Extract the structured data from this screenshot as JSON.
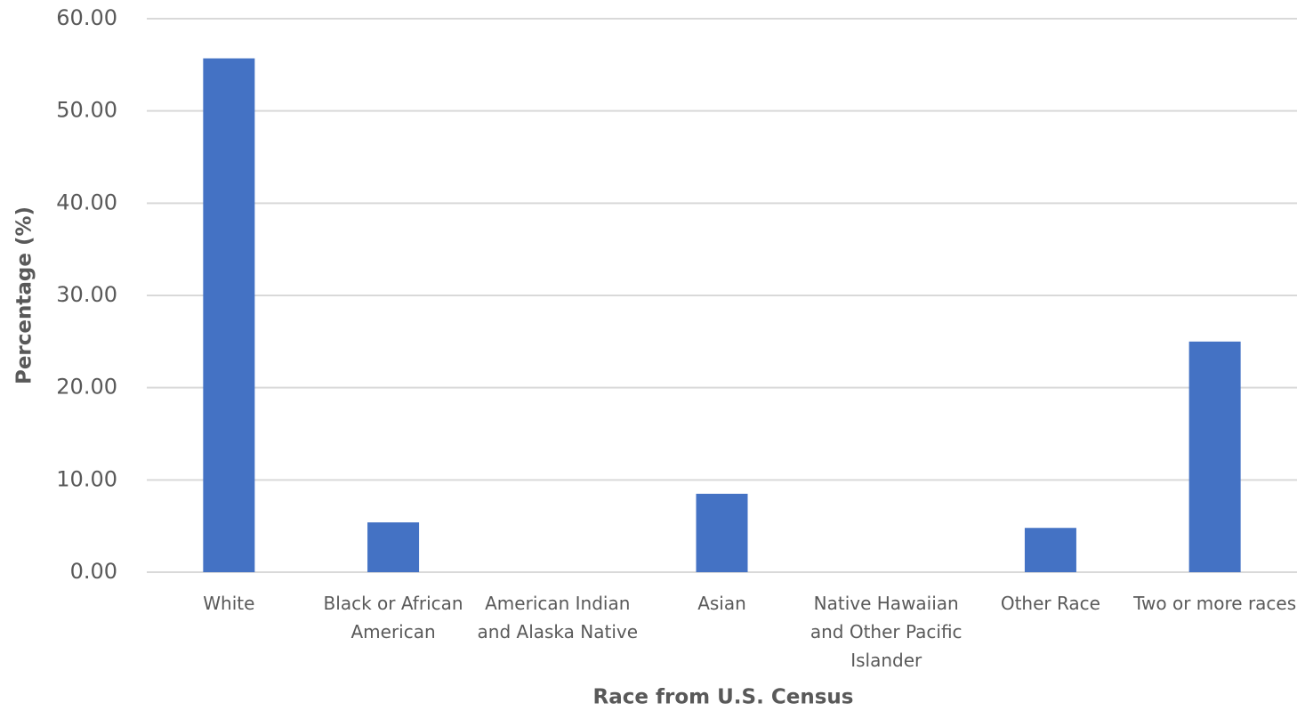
{
  "chart_data": {
    "type": "bar",
    "x_label": "Race from U.S. Census",
    "y_label": "Percentage (%)",
    "categories": [
      "White",
      "Black or African American",
      "American Indian and Alaska Native",
      "Asian",
      "Native Hawaiian and Other Pacific Islander",
      "Other Race",
      "Two or more races"
    ],
    "values": [
      55.7,
      5.4,
      0,
      8.5,
      0,
      4.8,
      25.0
    ],
    "color": "#4472c4",
    "ylim": [
      0,
      60
    ],
    "yticks": [
      {
        "value": 0,
        "label": "0.00"
      },
      {
        "value": 10,
        "label": "10.00"
      },
      {
        "value": 20,
        "label": "20.00"
      },
      {
        "value": 30,
        "label": "30.00"
      },
      {
        "value": 40,
        "label": "40.00"
      },
      {
        "value": 50,
        "label": "50.00"
      },
      {
        "value": 60,
        "label": "60.00"
      }
    ],
    "grid": true
  }
}
